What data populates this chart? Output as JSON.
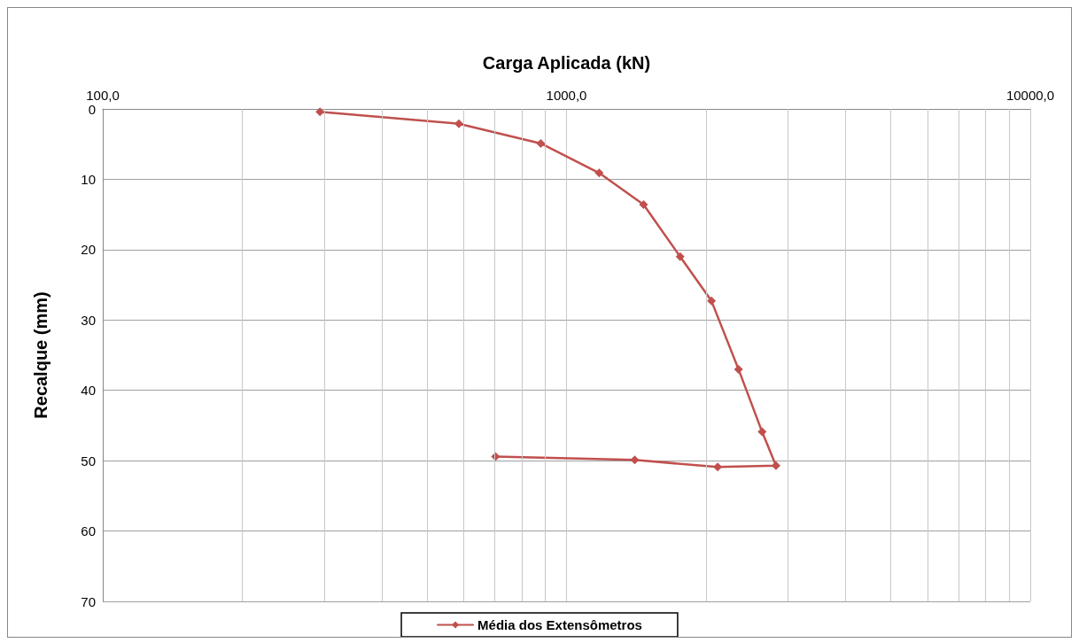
{
  "chart_data": {
    "type": "line",
    "xlabel": "Carga Aplicada (kN)",
    "ylabel": "Recalque (mm)",
    "xlim": [
      100,
      10000
    ],
    "xticks": [
      {
        "value": 100,
        "label": "100,0"
      },
      {
        "value": 1000,
        "label": "1000,0"
      },
      {
        "value": 10000,
        "label": "10000,0"
      }
    ],
    "ylim": [
      70,
      0
    ],
    "yticks": [
      0,
      10,
      20,
      30,
      40,
      50,
      60,
      70
    ],
    "log": "x",
    "grid": true,
    "legend": "bottom",
    "marker": "diamond",
    "line_style": "solid",
    "series": [
      {
        "name": "Média dos Extensômetros",
        "color": "#c0504d",
        "x": [
          294,
          586,
          880,
          1176,
          1466,
          1758,
          2054,
          2349,
          2641,
          2829,
          2118,
          1403,
          703
        ],
        "values": [
          0.4,
          2.1,
          4.9,
          9.1,
          13.6,
          21,
          27.3,
          37,
          45.9,
          50.7,
          50.9,
          49.9,
          49.4
        ]
      }
    ]
  }
}
